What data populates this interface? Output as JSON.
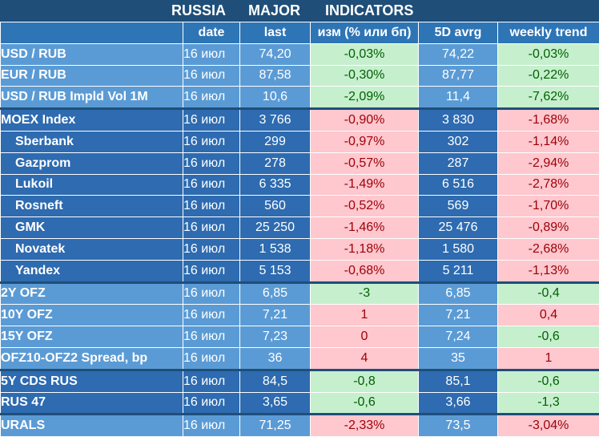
{
  "title": {
    "w1": "RUSSIA",
    "w2": "MAJOR",
    "w3": "INDICATORS"
  },
  "headers": {
    "date": "date",
    "last": "last",
    "chg": "изм (% или бп)",
    "avg": "5D avrg",
    "wk": "weekly trend"
  },
  "rows": [
    {
      "name": "USD / RUB",
      "date": "16 июл",
      "last": "74,20",
      "chg": "-0,03%",
      "avg": "74,22",
      "wk": "-0,03%",
      "chg_dir": "pos",
      "wk_dir": "pos"
    },
    {
      "name": "EUR / RUB",
      "date": "16 июл",
      "last": "87,58",
      "chg": "-0,30%",
      "avg": "87,77",
      "wk": "-0,22%",
      "chg_dir": "pos",
      "wk_dir": "pos"
    },
    {
      "name": "USD / RUB Impld Vol 1M",
      "date": "16 июл",
      "last": "10,6",
      "chg": "-2,09%",
      "avg": "11,4",
      "wk": "-7,62%",
      "chg_dir": "pos",
      "wk_dir": "pos"
    },
    {
      "name": "MOEX Index",
      "date": "16 июл",
      "last": "3 766",
      "chg": "-0,90%",
      "avg": "3 830",
      "wk": "-1,68%",
      "chg_dir": "neg",
      "wk_dir": "neg"
    },
    {
      "name": "Sberbank",
      "date": "16 июл",
      "last": "299",
      "chg": "-0,97%",
      "avg": "302",
      "wk": "-1,14%",
      "chg_dir": "neg",
      "wk_dir": "neg"
    },
    {
      "name": "Gazprom",
      "date": "16 июл",
      "last": "278",
      "chg": "-0,57%",
      "avg": "287",
      "wk": "-2,94%",
      "chg_dir": "neg",
      "wk_dir": "neg"
    },
    {
      "name": "Lukoil",
      "date": "16 июл",
      "last": "6 335",
      "chg": "-1,49%",
      "avg": "6 516",
      "wk": "-2,78%",
      "chg_dir": "neg",
      "wk_dir": "neg"
    },
    {
      "name": "Rosneft",
      "date": "16 июл",
      "last": "560",
      "chg": "-0,52%",
      "avg": "569",
      "wk": "-1,70%",
      "chg_dir": "neg",
      "wk_dir": "neg"
    },
    {
      "name": "GMK",
      "date": "16 июл",
      "last": "25 250",
      "chg": "-1,46%",
      "avg": "25 476",
      "wk": "-0,89%",
      "chg_dir": "neg",
      "wk_dir": "neg"
    },
    {
      "name": "Novatek",
      "date": "16 июл",
      "last": "1 538",
      "chg": "-1,18%",
      "avg": "1 580",
      "wk": "-2,68%",
      "chg_dir": "neg",
      "wk_dir": "neg"
    },
    {
      "name": "Yandex",
      "date": "16 июл",
      "last": "5 153",
      "chg": "-0,68%",
      "avg": "5 211",
      "wk": "-1,13%",
      "chg_dir": "neg",
      "wk_dir": "neg"
    },
    {
      "name": "2Y OFZ",
      "date": "16 июл",
      "last": "6,85",
      "chg": "-3",
      "avg": "6,85",
      "wk": "-0,4",
      "chg_dir": "pos",
      "wk_dir": "pos"
    },
    {
      "name": "10Y OFZ",
      "date": "16 июл",
      "last": "7,21",
      "chg": "1",
      "avg": "7,21",
      "wk": "0,4",
      "chg_dir": "neg",
      "wk_dir": "neg"
    },
    {
      "name": "15Y OFZ",
      "date": "16 июл",
      "last": "7,23",
      "chg": "0",
      "avg": "7,24",
      "wk": "-0,6",
      "chg_dir": "neg",
      "wk_dir": "pos"
    },
    {
      "name": "OFZ10-OFZ2 Spread, bp",
      "date": "16 июл",
      "last": "36",
      "chg": "4",
      "avg": "35",
      "wk": "1",
      "chg_dir": "neg",
      "wk_dir": "neg"
    },
    {
      "name": "5Y CDS RUS",
      "date": "16 июл",
      "last": "84,5",
      "chg": "-0,8",
      "avg": "85,1",
      "wk": "-0,6",
      "chg_dir": "pos",
      "wk_dir": "pos"
    },
    {
      "name": "RUS 47",
      "date": "16 июл",
      "last": "3,65",
      "chg": "-0,6",
      "avg": "3,66",
      "wk": "-1,3",
      "chg_dir": "pos",
      "wk_dir": "pos"
    },
    {
      "name": "URALS",
      "date": "16 июл",
      "last": "71,25",
      "chg": "-2,33%",
      "avg": "73,5",
      "wk": "-3,04%",
      "chg_dir": "neg",
      "wk_dir": "neg"
    }
  ],
  "colors": {
    "positive_bg": "#c6efce",
    "negative_bg": "#ffc7ce",
    "header_bg": "#1f4e79",
    "row_light": "#5b9bd5",
    "row_dark": "#2e6bb0"
  }
}
